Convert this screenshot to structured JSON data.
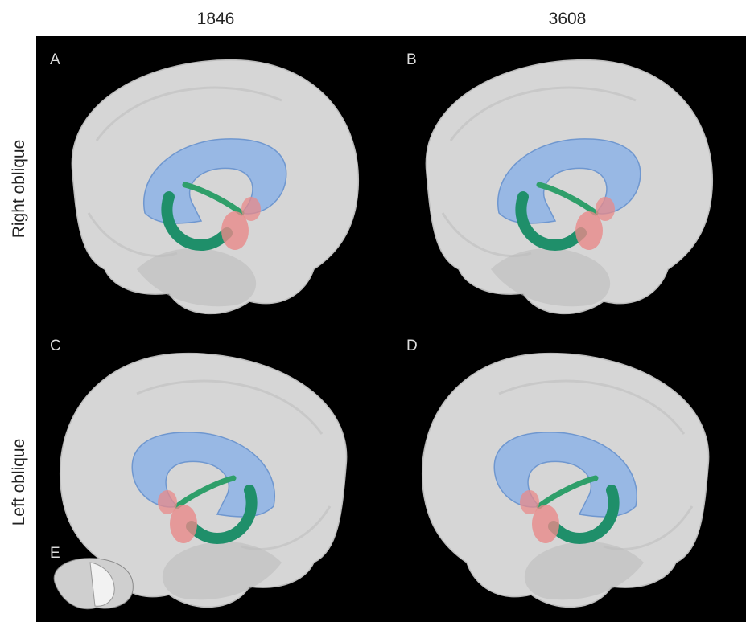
{
  "columns": [
    "1846",
    "3608"
  ],
  "rows": [
    "Right oblique",
    "Left oblique"
  ],
  "panels": [
    "A",
    "B",
    "C",
    "D",
    "E"
  ]
}
